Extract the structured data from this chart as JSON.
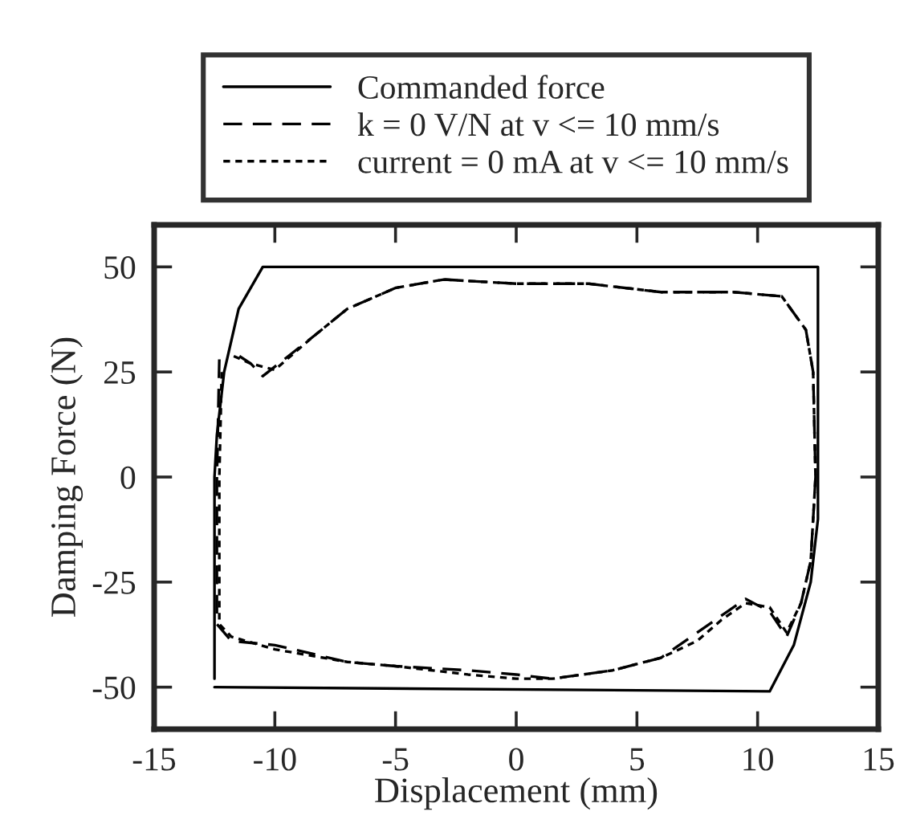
{
  "chart_data": {
    "type": "line",
    "xlabel": "Displacement (mm)",
    "ylabel": "Damping Force (N)",
    "xlim": [
      -15,
      15
    ],
    "xticks": [
      -15,
      -10,
      -5,
      0,
      5,
      10,
      15
    ],
    "ylim": [
      -60,
      60
    ],
    "yticks": [
      -50,
      -25,
      0,
      25,
      50
    ],
    "grid": false,
    "legend": "top",
    "marker": "none",
    "series": [
      {
        "name": "Commanded force",
        "color": "#000000",
        "line_style": "solid",
        "x": [
          -12.5,
          10.5,
          11.5,
          12.2,
          12.5,
          12.5,
          -10.5,
          -11.5,
          -12.1,
          -12.4,
          -12.5,
          -12.5
        ],
        "values": [
          -50,
          -51,
          -40,
          -25,
          -10,
          50,
          50,
          40,
          25,
          10,
          0,
          -48
        ]
      },
      {
        "name": "k = 0 V/N at v <= 10 mm/s",
        "color": "#000000",
        "line_style": "dashed",
        "x": [
          -12.3,
          -12.4,
          -12.4,
          -11.8,
          -10,
          -7,
          -5,
          -2,
          0,
          1.5,
          4,
          6,
          7.5,
          8.5,
          9.5,
          10.5,
          11.2,
          11.8,
          12.2,
          12.4,
          12.3,
          12,
          11,
          9,
          6,
          3,
          0,
          -3,
          -5,
          -7,
          -8.5,
          -10.5,
          -11,
          -11.8
        ],
        "values": [
          28,
          0,
          -35,
          -39,
          -40,
          -44,
          -45,
          -46,
          -47,
          -48,
          -46,
          -43,
          -37,
          -33,
          -29,
          -32,
          -38,
          -30,
          -20,
          0,
          25,
          35,
          43,
          44,
          44,
          46,
          46,
          47,
          45,
          40,
          33,
          24,
          27,
          30
        ]
      },
      {
        "name": "current = 0 mA at v <= 10 mm/s",
        "color": "#000000",
        "line_style": "dotted",
        "x": [
          -12.2,
          -12.3,
          -12.3,
          -11.8,
          -10,
          -7,
          -5,
          -2,
          0,
          1.5,
          4,
          6,
          7.5,
          8.5,
          9.5,
          10.5,
          11.2,
          11.8,
          12.2,
          12.4,
          12.3,
          12,
          11,
          9,
          6,
          3,
          0,
          -3,
          -5,
          -7,
          -8.5,
          -10,
          -11,
          -11.8
        ],
        "values": [
          25,
          0,
          -35,
          -38,
          -41,
          -44,
          -45,
          -47,
          -48,
          -48,
          -46,
          -43,
          -39,
          -34,
          -30,
          -31,
          -37,
          -30,
          -20,
          0,
          25,
          35,
          43,
          44,
          44,
          46,
          46,
          47,
          45,
          40,
          33,
          25.5,
          27,
          29
        ]
      }
    ]
  }
}
